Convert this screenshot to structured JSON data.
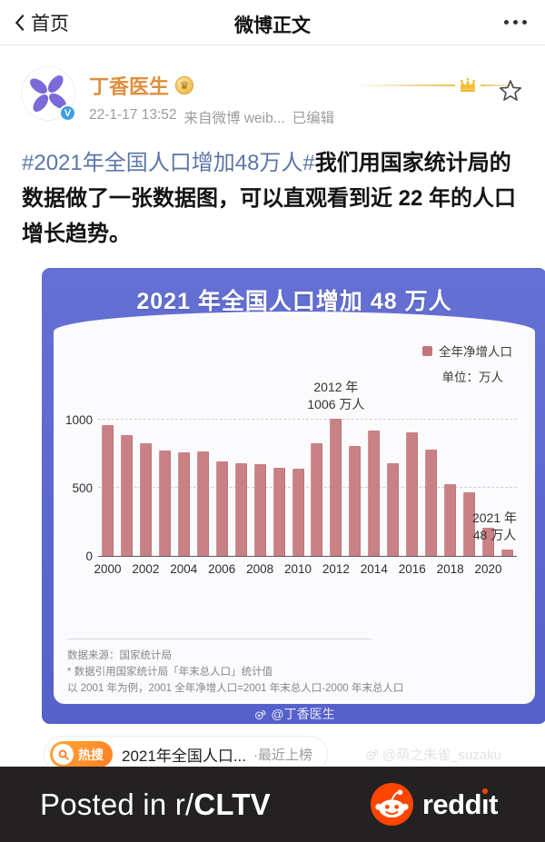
{
  "nav": {
    "back_label": "首页",
    "title": "微博正文"
  },
  "post": {
    "author": {
      "name": "丁香医生",
      "verified_letter": "V",
      "gold_badge_glyph": "♛",
      "timestamp": "22-1-17 13:52",
      "source": "来自微博 weib...",
      "edited_label": "已编辑"
    },
    "body": {
      "hashtag": "#2021年全国人口增加48万人#",
      "text": "我们用国家统计局的数据做了一张数据图，可以直观看到近 22 年的人口增长趋势。"
    }
  },
  "chart_data": {
    "type": "bar",
    "title": "2021 年全国人口增加 48 万人",
    "legend": {
      "label": "全年净增人口",
      "unit_label": "单位：万人"
    },
    "categories": [
      2000,
      2001,
      2002,
      2003,
      2004,
      2005,
      2006,
      2007,
      2008,
      2009,
      2010,
      2011,
      2012,
      2013,
      2014,
      2015,
      2016,
      2017,
      2018,
      2019,
      2020,
      2021
    ],
    "values": [
      957,
      884,
      826,
      774,
      761,
      768,
      692,
      681,
      673,
      648,
      641,
      825,
      1006,
      804,
      920,
      680,
      906,
      779,
      530,
      467,
      204,
      48
    ],
    "x_tick_years_shown": [
      2000,
      2002,
      2004,
      2006,
      2008,
      2010,
      2012,
      2014,
      2016,
      2018,
      2020
    ],
    "y_ticks": [
      "0",
      "500",
      "1000"
    ],
    "ylim": [
      0,
      1066
    ],
    "grid": "dashed horizontal at 500 and 1000",
    "legend_position": "top-right",
    "bar_color": "#c98185",
    "annotations": [
      {
        "bar_index": 12,
        "lines": [
          "2012 年",
          "1006 万人"
        ],
        "dx": 0
      },
      {
        "bar_index": 21,
        "lines": [
          "2021 年",
          "48 万人"
        ],
        "dx": -14
      }
    ],
    "footer": {
      "source": "数据来源：国家统计局",
      "note1": "* 数据引用国家统计局「年末总人口」统计值",
      "note2": "以 2001 年为例，2001 全年净增人口=2001 年末总人口-2000 年末总人口"
    },
    "watermark": "@丁香医生"
  },
  "hot_search": {
    "badge_label": "热搜",
    "topic": "2021年全国人口...",
    "status": "·最近上榜"
  },
  "page_watermark": "@萌之朱雀_suzaku",
  "footer_bar": {
    "posted_prefix": "Posted in r/",
    "subreddit": "CLTV",
    "brand": "reddit"
  },
  "colors": {
    "chart_background": "#5b66cd",
    "bar": "#c98185",
    "username_orange": "#df8e3e",
    "hashtag_blue": "#5b76a9",
    "reddit_orange": "#ff4500",
    "footer_bar_background": "#242122",
    "hot_badge_orange": "#ff7c22"
  }
}
